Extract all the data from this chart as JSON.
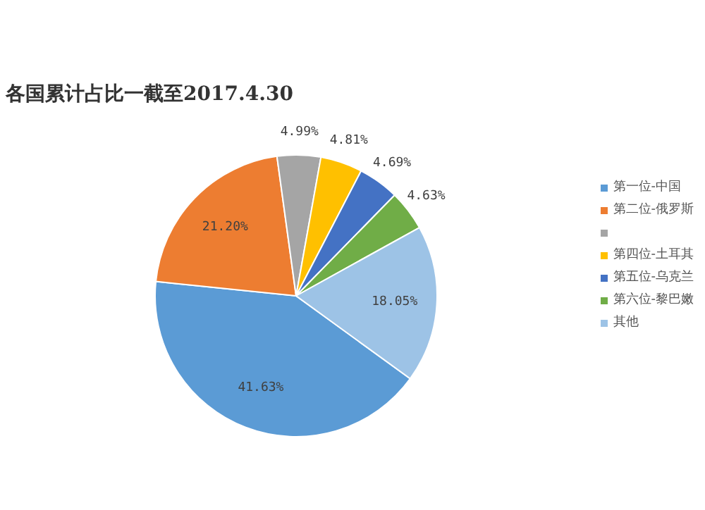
{
  "chart_data": {
    "type": "pie",
    "title": "各国累计占比一截至2017.4.30",
    "categories": [
      "第一位-中国",
      "第二位-俄罗斯",
      null,
      "第四位-土耳其",
      "第五位-乌克兰",
      "第六位-黎巴嫩",
      "其他"
    ],
    "values": [
      41.63,
      21.2,
      4.99,
      4.81,
      4.69,
      4.63,
      18.05
    ],
    "value_labels": [
      "41.63%",
      "21.20%",
      "4.99%",
      "4.81%",
      "4.69%",
      "4.63%",
      "18.05%"
    ],
    "colors": [
      "#5b9bd5",
      "#ed7d31",
      "#a5a5a5",
      "#ffc000",
      "#4472c4",
      "#70ad47",
      "#9dc3e6"
    ],
    "legend": "right"
  }
}
